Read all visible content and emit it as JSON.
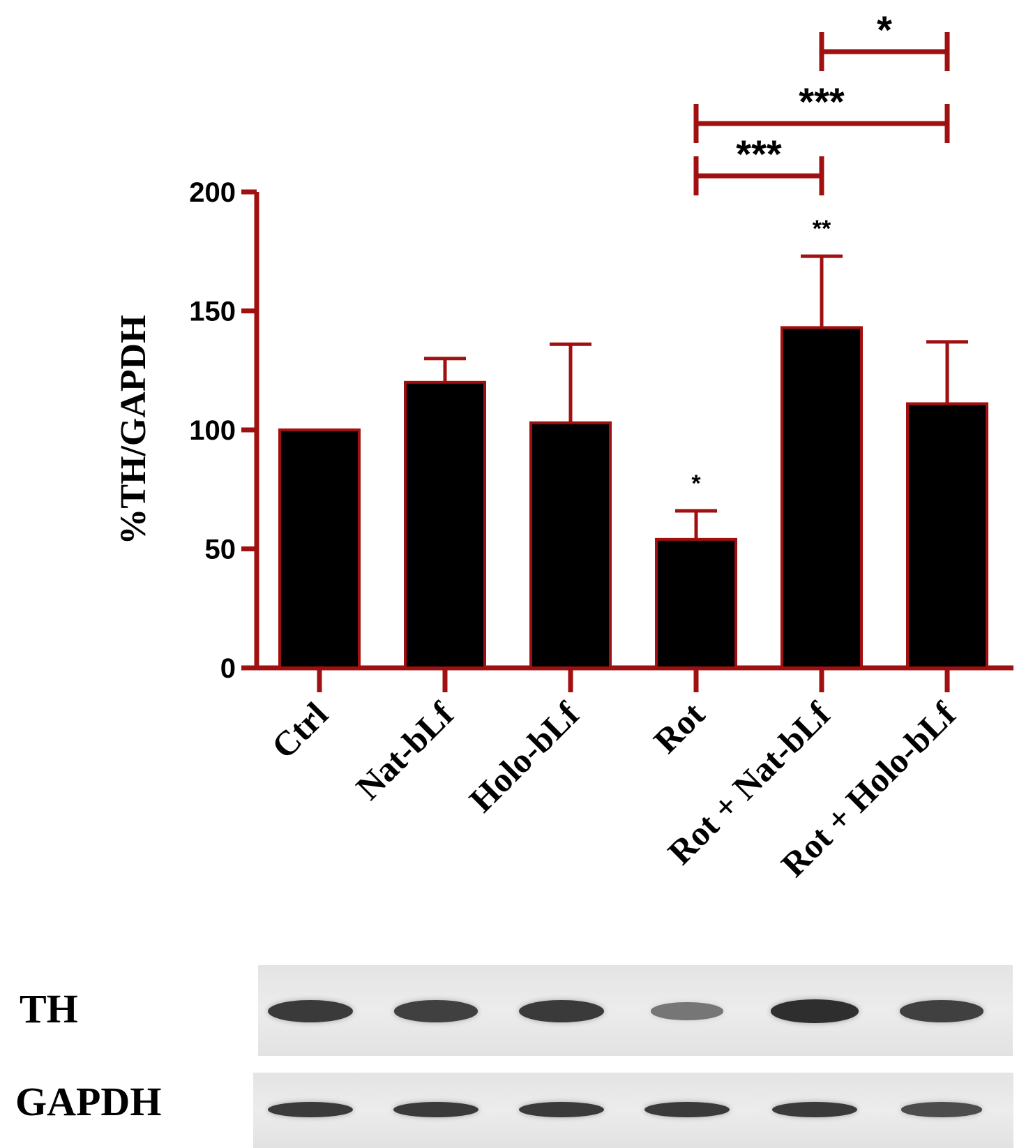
{
  "chart_data": {
    "type": "bar",
    "categories": [
      "Ctrl",
      "Nat-bLf",
      "Holo-bLf",
      "Rot",
      "Rot + Nat-bLf",
      "Rot + Holo-bLf"
    ],
    "values": [
      100,
      120,
      103,
      54,
      143,
      111
    ],
    "errors": [
      0,
      10,
      33,
      12,
      30,
      26
    ],
    "bar_annotations": [
      "",
      "",
      "",
      "*",
      "**",
      ""
    ],
    "ylabel": "%TH/GAPDH",
    "xlabel": "",
    "title": "",
    "ylim": [
      0,
      200
    ],
    "yticks": [
      "0",
      "50",
      "100",
      "150",
      "200"
    ],
    "comparisons": [
      {
        "from": "Rot",
        "to": "Rot + Nat-bLf",
        "label": "***"
      },
      {
        "from": "Rot",
        "to": "Rot + Holo-bLf",
        "label": "***"
      },
      {
        "from": "Rot + Nat-bLf",
        "to": "Rot + Holo-bLf",
        "label": "*"
      }
    ],
    "grid": false,
    "colors": {
      "bar_fill": "#000000",
      "bar_edge": "#a01010",
      "axis": "#a01010",
      "error": "#a01010",
      "bracket": "#a01010"
    }
  },
  "blot": {
    "rows": [
      {
        "label": "TH",
        "intensity": [
          0.85,
          0.8,
          0.85,
          0.35,
          0.95,
          0.8
        ]
      },
      {
        "label": "GAPDH",
        "intensity": [
          0.85,
          0.85,
          0.85,
          0.85,
          0.85,
          0.7
        ]
      }
    ]
  }
}
